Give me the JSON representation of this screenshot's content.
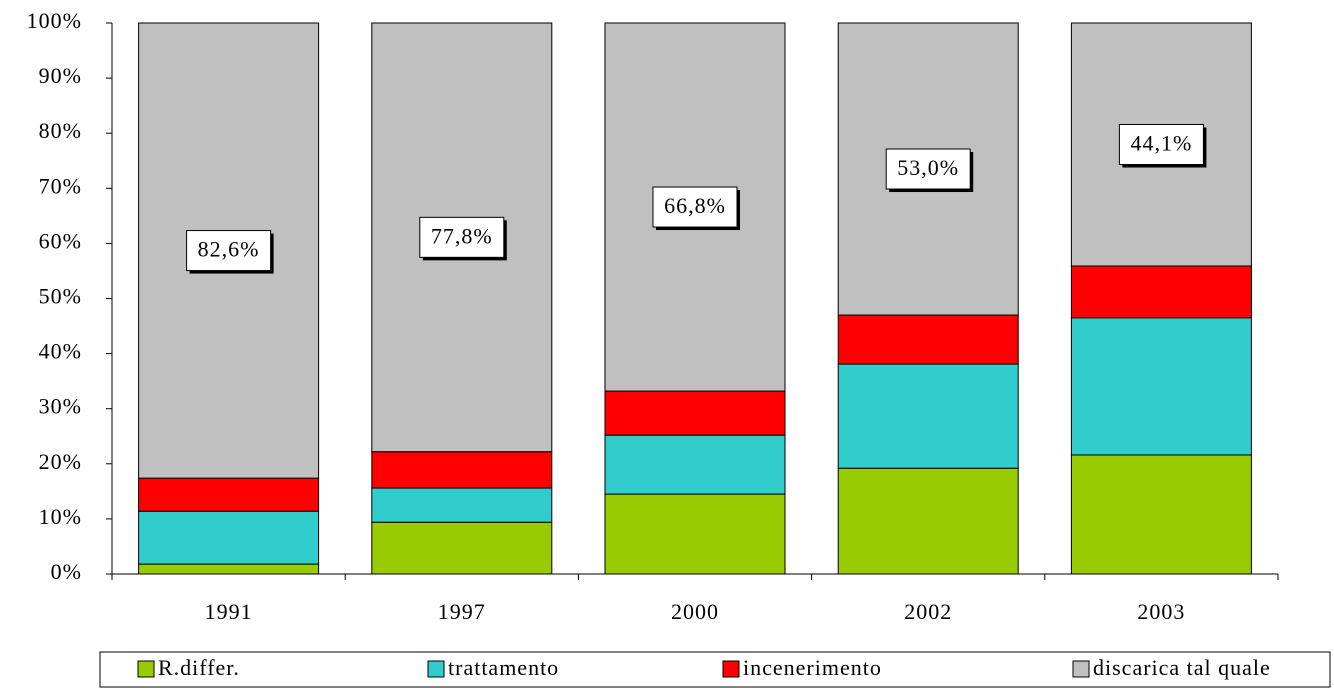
{
  "chart_data": {
    "type": "stacked_bar",
    "categories": [
      "1991",
      "1997",
      "2000",
      "2002",
      "2003"
    ],
    "series": [
      {
        "name": "R.differ.",
        "color": "#99cc00",
        "values": [
          1.8,
          9.4,
          14.5,
          19.2,
          21.6
        ]
      },
      {
        "name": "trattamento",
        "color": "#33cccc",
        "values": [
          9.6,
          6.2,
          10.7,
          18.9,
          24.9
        ]
      },
      {
        "name": "incenerimento",
        "color": "#ff0000",
        "values": [
          6.0,
          6.6,
          8.0,
          8.9,
          9.4
        ]
      },
      {
        "name": "discarica tal quale",
        "color": "#c0c0c0",
        "values": [
          82.6,
          77.8,
          66.8,
          53.0,
          44.1
        ],
        "value_labels": [
          "82,6%",
          "77,8%",
          "66,8%",
          "53,0%",
          "44,1%"
        ]
      }
    ],
    "ylim": [
      0,
      100
    ],
    "yticks": [
      {
        "value": 0,
        "label": "0%"
      },
      {
        "value": 10,
        "label": "10%"
      },
      {
        "value": 20,
        "label": "20%"
      },
      {
        "value": 30,
        "label": "30%"
      },
      {
        "value": 40,
        "label": "40%"
      },
      {
        "value": 50,
        "label": "50%"
      },
      {
        "value": 60,
        "label": "60%"
      },
      {
        "value": 70,
        "label": "70%"
      },
      {
        "value": 80,
        "label": "80%"
      },
      {
        "value": 90,
        "label": "90%"
      },
      {
        "value": 100,
        "label": "100%"
      }
    ],
    "legend": "bottom"
  }
}
